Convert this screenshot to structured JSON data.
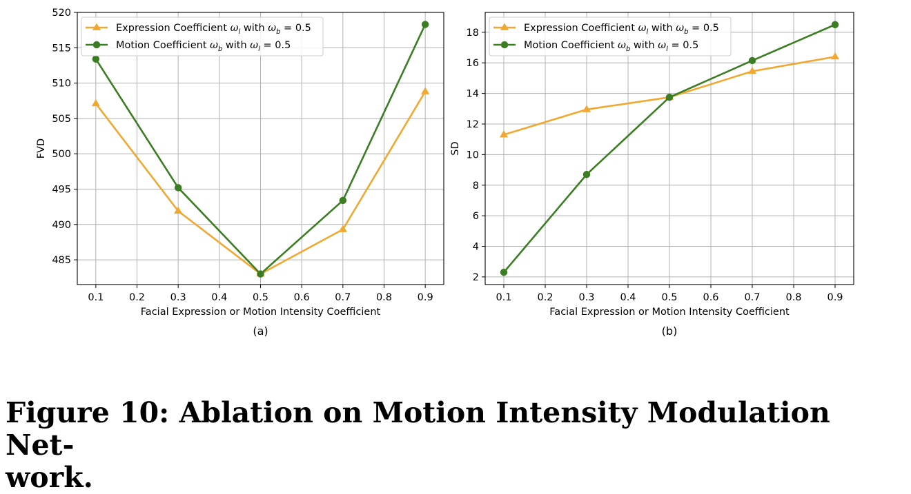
{
  "figure": {
    "caption_line1": "Figure 10: Ablation on Motion Intensity Modulation Net-",
    "caption_line2": "work."
  },
  "chart_data": [
    {
      "type": "line",
      "panel_label": "(a)",
      "xlabel": "Facial Expression or Motion Intensity Coefficient",
      "ylabel": "FVD",
      "xlim": [
        0.055,
        0.945
      ],
      "ylim": [
        481.5,
        520
      ],
      "xticks": [
        "0.1",
        "0.2",
        "0.3",
        "0.4",
        "0.5",
        "0.6",
        "0.7",
        "0.8",
        "0.9"
      ],
      "yticks": [
        "485",
        "490",
        "495",
        "500",
        "505",
        "510",
        "515",
        "520"
      ],
      "grid": true,
      "legend_position": "top-left",
      "x": [
        0.1,
        0.3,
        0.5,
        0.7,
        0.9
      ],
      "series": [
        {
          "name": "Expression Coefficient ω_l with ω_b = 0.5",
          "legend_text": "Expression Coefficient",
          "legend_tail": "with",
          "legend_value": "= 0.5",
          "sym": "ω",
          "sym_sub": "l",
          "cond_sym": "ω",
          "cond_sub": "b",
          "color": "#f0a830",
          "marker": "triangle",
          "values": [
            507.1,
            491.9,
            483.0,
            489.3,
            508.8
          ]
        },
        {
          "name": "Motion Coefficient ω_b with ω_l = 0.5",
          "legend_text": "Motion Coefficient",
          "legend_tail": "with",
          "legend_value": "= 0.5",
          "sym": "ω",
          "sym_sub": "b",
          "cond_sym": "ω",
          "cond_sub": "l",
          "color": "#3a7d22",
          "marker": "circle",
          "values": [
            513.4,
            495.2,
            483.0,
            493.4,
            518.3
          ]
        }
      ]
    },
    {
      "type": "line",
      "panel_label": "(b)",
      "xlabel": "Facial Expression or Motion Intensity Coefficient",
      "ylabel": "SD",
      "xlim": [
        0.055,
        0.945
      ],
      "ylim": [
        1.5,
        19.3
      ],
      "xticks": [
        "0.1",
        "0.2",
        "0.3",
        "0.4",
        "0.5",
        "0.6",
        "0.7",
        "0.8",
        "0.9"
      ],
      "yticks": [
        "2",
        "4",
        "6",
        "8",
        "10",
        "12",
        "14",
        "16",
        "18"
      ],
      "grid": true,
      "legend_position": "top-left",
      "x": [
        0.1,
        0.3,
        0.5,
        0.7,
        0.9
      ],
      "series": [
        {
          "name": "Expression Coefficient ω_l with ω_b = 0.5",
          "legend_text": "Expression Coefficient",
          "legend_tail": "with",
          "legend_value": "= 0.5",
          "sym": "ω",
          "sym_sub": "l",
          "cond_sym": "ω",
          "cond_sub": "b",
          "color": "#f0a830",
          "marker": "triangle",
          "values": [
            11.3,
            12.95,
            13.75,
            15.45,
            16.4
          ]
        },
        {
          "name": "Motion Coefficient ω_b with ω_l = 0.5",
          "legend_text": "Motion Coefficient",
          "legend_tail": "with",
          "legend_value": "= 0.5",
          "sym": "ω",
          "sym_sub": "b",
          "cond_sym": "ω",
          "cond_sub": "l",
          "color": "#3a7d22",
          "marker": "circle",
          "values": [
            2.3,
            8.7,
            13.75,
            16.15,
            18.5
          ]
        }
      ]
    }
  ]
}
